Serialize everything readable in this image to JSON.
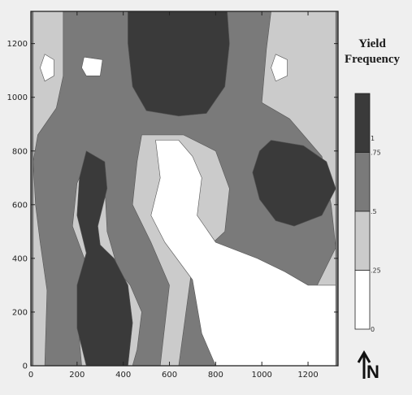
{
  "chart_data": {
    "type": "heatmap",
    "title": "",
    "xlabel": "",
    "ylabel": "",
    "x_ticks": [
      0,
      200,
      400,
      600,
      800,
      1000,
      1200
    ],
    "y_ticks": [
      0,
      200,
      400,
      600,
      800,
      1000,
      1200
    ],
    "xlim": [
      0,
      1330
    ],
    "ylim": [
      0,
      1320
    ],
    "legend": {
      "title_line1": "Yield",
      "title_line2": "Frequency",
      "placement": "right",
      "tick_labels": [
        "1",
        ".75",
        ".5",
        ".25",
        "0"
      ],
      "classes": [
        {
          "range": [
            0.75,
            1.0
          ],
          "color": "#3a3a3a"
        },
        {
          "range": [
            0.5,
            0.75
          ],
          "color": "#7a7a7a"
        },
        {
          "range": [
            0.25,
            0.5
          ],
          "color": "#cbcbcb"
        },
        {
          "range": [
            0.0,
            0.25
          ],
          "color": "#ffffff"
        }
      ]
    },
    "background_class_color": "#7a7a7a",
    "regions": [
      {
        "class": ".25-.5",
        "fill": "#cbcbcb",
        "points": [
          [
            10,
            1320
          ],
          [
            140,
            1320
          ],
          [
            140,
            1080
          ],
          [
            110,
            960
          ],
          [
            30,
            860
          ],
          [
            10,
            760
          ],
          [
            20,
            600
          ],
          [
            40,
            460
          ],
          [
            70,
            280
          ],
          [
            60,
            0
          ],
          [
            10,
            0
          ]
        ]
      },
      {
        "class": ".25-.5",
        "fill": "#cbcbcb",
        "points": [
          [
            1040,
            1320
          ],
          [
            1320,
            1320
          ],
          [
            1320,
            0
          ],
          [
            1120,
            0
          ],
          [
            1170,
            160
          ],
          [
            1240,
            300
          ],
          [
            1320,
            440
          ],
          [
            1300,
            600
          ],
          [
            1260,
            780
          ],
          [
            1120,
            920
          ],
          [
            1000,
            980
          ],
          [
            1020,
            1180
          ]
        ]
      },
      {
        "class": ".25-.5",
        "fill": "#cbcbcb",
        "points": [
          [
            480,
            860
          ],
          [
            660,
            860
          ],
          [
            800,
            800
          ],
          [
            860,
            660
          ],
          [
            840,
            500
          ],
          [
            740,
            420
          ],
          [
            700,
            380
          ],
          [
            640,
            0
          ],
          [
            560,
            0
          ],
          [
            600,
            300
          ],
          [
            520,
            460
          ],
          [
            440,
            600
          ],
          [
            460,
            760
          ]
        ]
      },
      {
        "class": ".25-.5",
        "fill": "#cbcbcb",
        "points": [
          [
            240,
            760
          ],
          [
            320,
            680
          ],
          [
            330,
            500
          ],
          [
            380,
            350
          ],
          [
            430,
            300
          ],
          [
            480,
            200
          ],
          [
            460,
            60
          ],
          [
            440,
            0
          ],
          [
            220,
            0
          ],
          [
            200,
            200
          ],
          [
            240,
            380
          ],
          [
            180,
            520
          ],
          [
            200,
            680
          ]
        ]
      },
      {
        "class": "0-.25",
        "fill": "#ffffff",
        "points": [
          [
            540,
            840
          ],
          [
            640,
            840
          ],
          [
            700,
            780
          ],
          [
            740,
            700
          ],
          [
            720,
            560
          ],
          [
            800,
            460
          ],
          [
            980,
            400
          ],
          [
            1100,
            350
          ],
          [
            1200,
            300
          ],
          [
            1320,
            300
          ],
          [
            1320,
            0
          ],
          [
            800,
            0
          ],
          [
            740,
            120
          ],
          [
            700,
            320
          ],
          [
            580,
            460
          ],
          [
            520,
            560
          ],
          [
            560,
            700
          ]
        ]
      },
      {
        "class": "0-.25",
        "fill": "#ffffff",
        "points": [
          [
            60,
            1160
          ],
          [
            100,
            1140
          ],
          [
            100,
            1080
          ],
          [
            60,
            1060
          ],
          [
            40,
            1110
          ]
        ]
      },
      {
        "class": "0-.25",
        "fill": "#ffffff",
        "points": [
          [
            230,
            1150
          ],
          [
            310,
            1140
          ],
          [
            300,
            1080
          ],
          [
            240,
            1080
          ],
          [
            220,
            1110
          ]
        ]
      },
      {
        "class": "0-.25",
        "fill": "#ffffff",
        "points": [
          [
            1060,
            1160
          ],
          [
            1110,
            1140
          ],
          [
            1110,
            1080
          ],
          [
            1060,
            1060
          ],
          [
            1040,
            1110
          ]
        ]
      },
      {
        "class": ".75-1",
        "fill": "#3a3a3a",
        "points": [
          [
            420,
            1320
          ],
          [
            850,
            1320
          ],
          [
            860,
            1200
          ],
          [
            840,
            1040
          ],
          [
            760,
            940
          ],
          [
            640,
            930
          ],
          [
            500,
            950
          ],
          [
            440,
            1040
          ],
          [
            420,
            1200
          ]
        ]
      },
      {
        "class": ".75-1",
        "fill": "#3a3a3a",
        "points": [
          [
            240,
            800
          ],
          [
            320,
            760
          ],
          [
            330,
            660
          ],
          [
            290,
            520
          ],
          [
            300,
            450
          ],
          [
            360,
            400
          ],
          [
            420,
            300
          ],
          [
            440,
            160
          ],
          [
            420,
            0
          ],
          [
            240,
            0
          ],
          [
            200,
            140
          ],
          [
            200,
            300
          ],
          [
            240,
            420
          ],
          [
            200,
            560
          ],
          [
            210,
            700
          ]
        ]
      },
      {
        "class": ".75-1",
        "fill": "#3a3a3a",
        "points": [
          [
            1040,
            840
          ],
          [
            1180,
            820
          ],
          [
            1280,
            760
          ],
          [
            1320,
            660
          ],
          [
            1260,
            560
          ],
          [
            1140,
            520
          ],
          [
            1060,
            540
          ],
          [
            990,
            620
          ],
          [
            960,
            720
          ],
          [
            990,
            800
          ]
        ]
      }
    ]
  },
  "north_arrow": {
    "label": "N"
  }
}
